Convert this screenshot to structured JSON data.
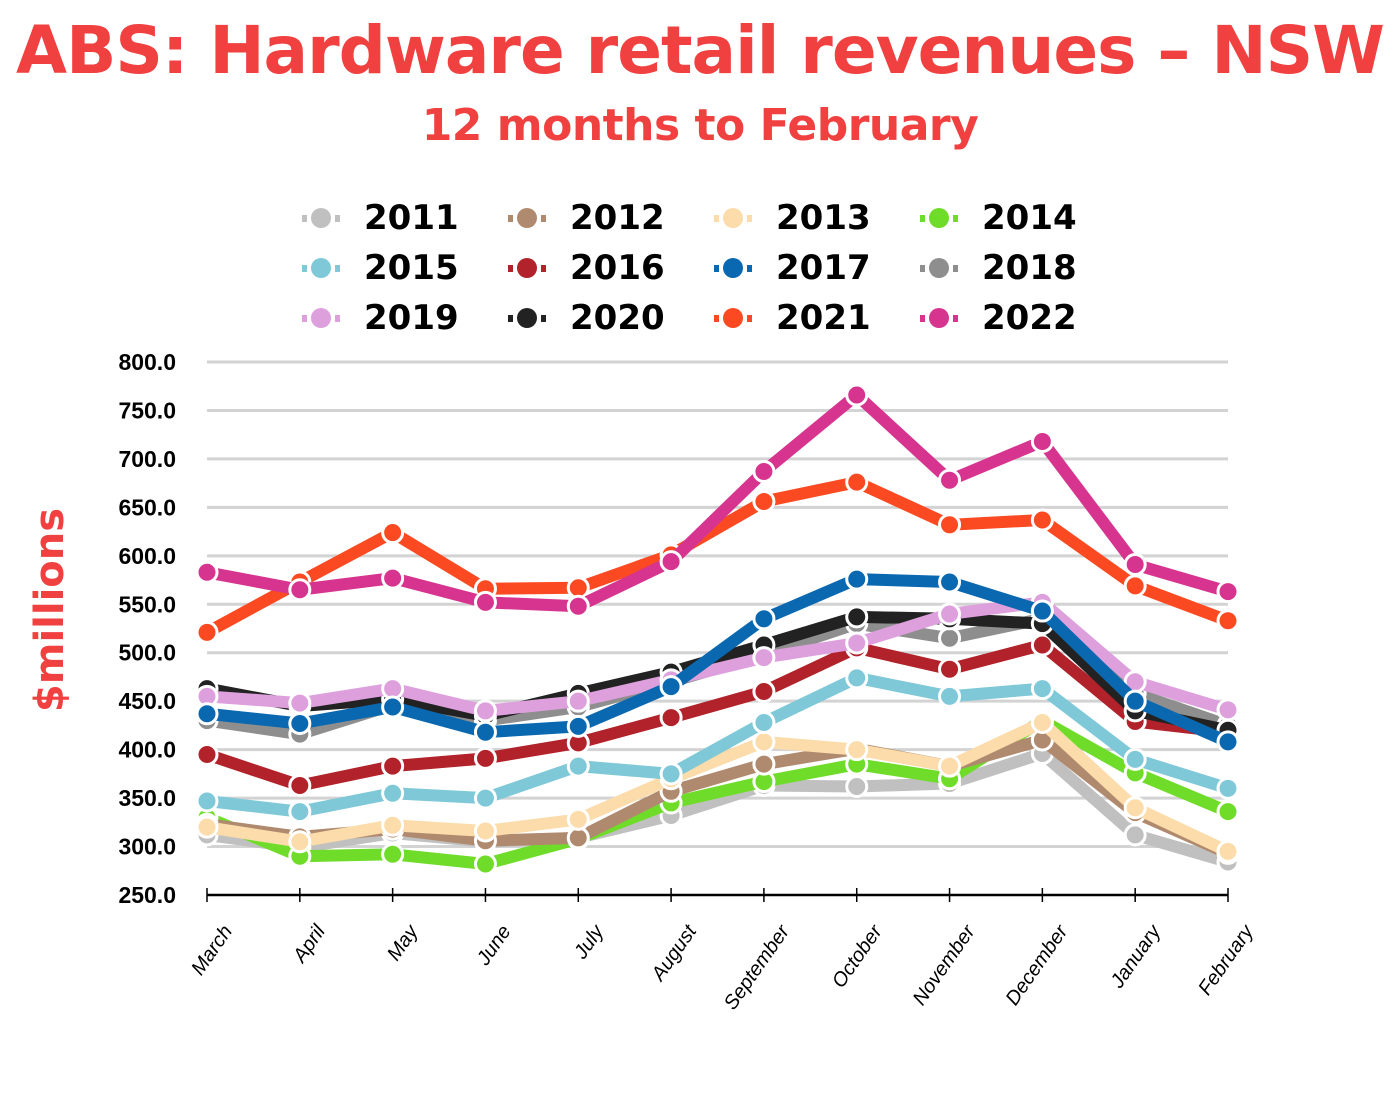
{
  "chart_data": {
    "type": "line",
    "title": "ABS: Hardware retail revenues – NSW",
    "subtitle": "12 months to February",
    "xlabel": "",
    "ylabel": "$millions",
    "ylim": [
      250,
      800
    ],
    "yticks": [
      "800.0",
      "750.0",
      "700.0",
      "650.0",
      "600.0",
      "550.0",
      "500.0",
      "450.0",
      "400.0",
      "350.0",
      "300.0",
      "250.0"
    ],
    "ytick_values": [
      800,
      750,
      700,
      650,
      600,
      550,
      500,
      450,
      400,
      350,
      300,
      250
    ],
    "grid": true,
    "legend_position": "top",
    "categories": [
      "March",
      "April",
      "May",
      "June",
      "July",
      "August",
      "September",
      "October",
      "November",
      "December",
      "January",
      "February"
    ],
    "series": [
      {
        "name": "2011",
        "color": "#c0c0c0",
        "values": [
          312,
          299,
          314,
          305,
          309,
          332,
          363,
          362,
          365,
          396,
          312,
          284
        ]
      },
      {
        "name": "2012",
        "color": "#b08a6e",
        "values": [
          323,
          310,
          318,
          306,
          309,
          357,
          385,
          401,
          383,
          410,
          335,
          293
        ]
      },
      {
        "name": "2013",
        "color": "#fbdcaa",
        "values": [
          320,
          305,
          322,
          316,
          328,
          370,
          408,
          400,
          383,
          428,
          340,
          295
        ]
      },
      {
        "name": "2014",
        "color": "#6fdc2a",
        "values": [
          330,
          290,
          292,
          282,
          308,
          345,
          367,
          385,
          370,
          430,
          376,
          336
        ]
      },
      {
        "name": "2015",
        "color": "#7ec8d8",
        "values": [
          347,
          336,
          355,
          350,
          383,
          375,
          428,
          474,
          455,
          463,
          390,
          360
        ]
      },
      {
        "name": "2016",
        "color": "#b1222b",
        "values": [
          395,
          363,
          383,
          391,
          407,
          433,
          460,
          505,
          483,
          508,
          429,
          418
        ]
      },
      {
        "name": "2017",
        "color": "#0a68b0",
        "values": [
          437,
          427,
          444,
          418,
          424,
          465,
          535,
          576,
          573,
          543,
          450,
          408
        ]
      },
      {
        "name": "2018",
        "color": "#8e8e8e",
        "values": [
          430,
          416,
          446,
          430,
          444,
          470,
          498,
          530,
          515,
          535,
          458,
          425
        ]
      },
      {
        "name": "2019",
        "color": "#dea0dd",
        "values": [
          455,
          448,
          463,
          440,
          450,
          472,
          495,
          510,
          540,
          552,
          470,
          441
        ]
      },
      {
        "name": "2020",
        "color": "#222222",
        "values": [
          463,
          445,
          452,
          435,
          458,
          480,
          508,
          537,
          535,
          530,
          440,
          420
        ]
      },
      {
        "name": "2021",
        "color": "#fb4a22",
        "values": [
          521,
          573,
          624,
          566,
          567,
          601,
          656,
          676,
          632,
          637,
          569,
          533
        ]
      },
      {
        "name": "2022",
        "color": "#d6348e",
        "values": [
          583,
          565,
          577,
          552,
          548,
          594,
          687,
          766,
          678,
          718,
          591,
          563
        ]
      }
    ]
  },
  "draw_order": [
    "2011",
    "2014",
    "2012",
    "2013",
    "2015",
    "2016",
    "2018",
    "2020",
    "2019",
    "2017",
    "2021",
    "2022"
  ]
}
